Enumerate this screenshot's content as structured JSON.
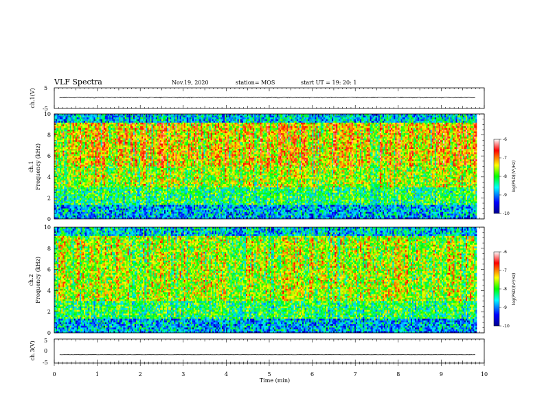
{
  "header": {
    "title": "VLF Spectra",
    "date": "Nov.19, 2020",
    "station": "station= MOS",
    "start": "start  UT =   19: 20: 1"
  },
  "chart_data": {
    "type": "heatmap",
    "xlabel": "Time  (min)",
    "xlim": [
      0,
      10
    ],
    "xticks": [
      "0",
      "1",
      "2",
      "3",
      "4",
      "5",
      "6",
      "7",
      "8",
      "9",
      "10"
    ],
    "panels": [
      {
        "kind": "line",
        "ylabel": "ch.1(V)",
        "ylim": [
          -5,
          5
        ],
        "yticks": [
          "5",
          "-5"
        ],
        "level": 0.3
      },
      {
        "kind": "spectrogram",
        "channel": "ch.1",
        "ylabel": "Frequency  (kHz)",
        "ylim": [
          0,
          10
        ],
        "yticks": [
          "0",
          "2",
          "4",
          "6",
          "8",
          "10"
        ]
      },
      {
        "kind": "spectrogram",
        "channel": "ch.2",
        "ylabel": "Frequency  (kHz)",
        "ylim": [
          0,
          10
        ],
        "yticks": [
          "0",
          "2",
          "4",
          "6",
          "8",
          "10"
        ]
      },
      {
        "kind": "line",
        "ylabel": "ch.3(V)",
        "ylim": [
          -5,
          5
        ],
        "yticks": [
          "5",
          "0",
          "-5"
        ],
        "level": -1.5
      }
    ],
    "colorbar": {
      "label": "log(PSD)(V²/Hz)",
      "range": [
        -10,
        -6
      ],
      "ticks": [
        "-6",
        "-7",
        "-8",
        "-9",
        "-10"
      ]
    }
  }
}
